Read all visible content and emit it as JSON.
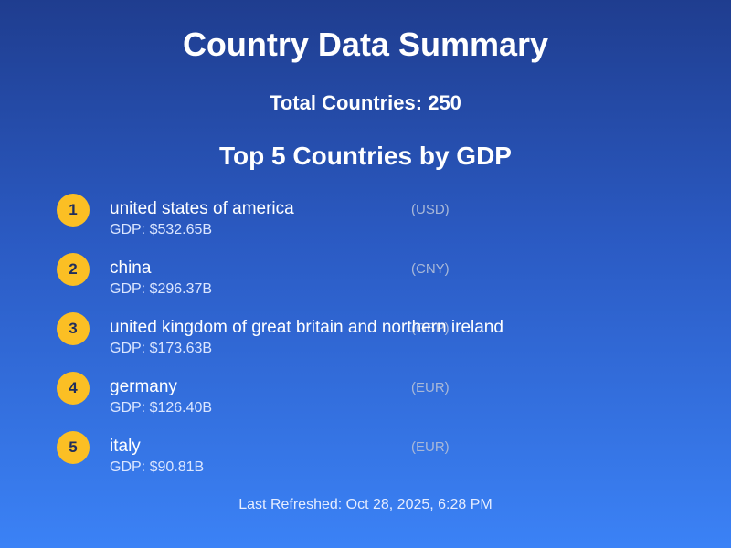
{
  "header": {
    "title": "Country Data Summary",
    "total_countries": "Total Countries: 250",
    "subtitle": "Top 5 Countries by GDP"
  },
  "countries": [
    {
      "rank": "1",
      "name": "united states of america",
      "currency": "(USD)",
      "gdp": "GDP: $532.65B"
    },
    {
      "rank": "2",
      "name": "china",
      "currency": "(CNY)",
      "gdp": "GDP: $296.37B"
    },
    {
      "rank": "3",
      "name": "united kingdom of great britain and northern ireland",
      "currency": "(GBP)",
      "gdp": "GDP: $173.63B"
    },
    {
      "rank": "4",
      "name": "germany",
      "currency": "(EUR)",
      "gdp": "GDP: $126.40B"
    },
    {
      "rank": "5",
      "name": "italy",
      "currency": "(EUR)",
      "gdp": "GDP: $90.81B"
    }
  ],
  "footer": {
    "last_refreshed": "Last Refreshed: Oct 28, 2025, 6:28 PM"
  },
  "colors": {
    "rank_badge": "#fbbf24",
    "background_top": "#1f3d8f",
    "background_bottom": "#3b82f6"
  }
}
